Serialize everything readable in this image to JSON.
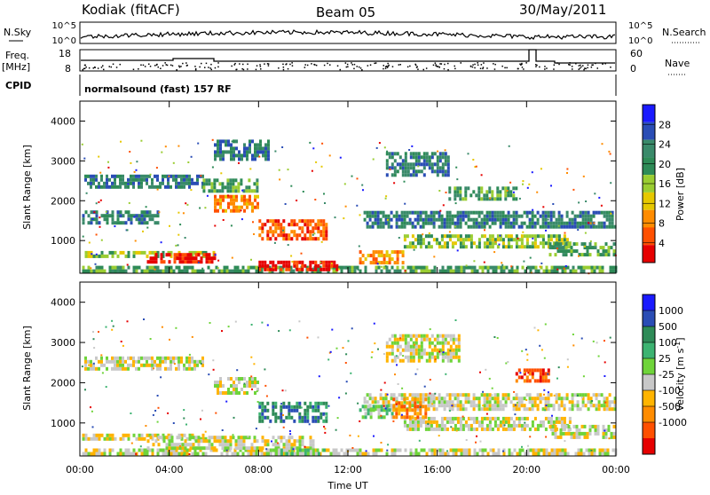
{
  "header": {
    "station": "Kodiak (fitACF)",
    "beam": "Beam 05",
    "date": "30/May/2011"
  },
  "strip": {
    "nsky_label": "N.Sky",
    "nsky_ticks": [
      "10^5",
      "10^0"
    ],
    "nsearch_label": "N.Search",
    "nsearch_ticks": [
      "10^5",
      "10^0"
    ],
    "freq_label": "Freq.",
    "freq_unit": "[MHz]",
    "freq_ticks": [
      "18",
      "8"
    ],
    "nave_label": "Nave",
    "nave_ticks": [
      "60",
      "0"
    ],
    "cpid_label": "CPID",
    "cpid_value": "normalsound (fast) 157 RF"
  },
  "colors": {
    "power": [
      "#1a1aff",
      "#2a4db5",
      "#3a8a6a",
      "#2e8b57",
      "#9acd32",
      "#e6c800",
      "#ff8c00",
      "#ff5000",
      "#e60000"
    ],
    "velocity": [
      "#1a1aff",
      "#2a4db5",
      "#2e8b57",
      "#3cb371",
      "#6fd43a",
      "#c8c8c8",
      "#ffb400",
      "#ff8c00",
      "#ff5000",
      "#e60000"
    ]
  },
  "chart_data": [
    {
      "type": "heatmap",
      "name": "power",
      "ylabel": "Slant Range [km]",
      "ylim": [
        180,
        4500
      ],
      "yticks": [
        "4000",
        "3000",
        "2000",
        "1000"
      ],
      "xlim": [
        0,
        24
      ],
      "colorbar_label": "Power [dB]",
      "colorbar_ticks": [
        "28",
        "24",
        "20",
        "16",
        "12",
        "8",
        "4"
      ],
      "bands": [
        {
          "t0": 0.1,
          "t1": 24,
          "r0": 190,
          "r1": 280,
          "level": 3
        },
        {
          "t0": 0.1,
          "t1": 6.0,
          "r0": 560,
          "r1": 700,
          "level": 4
        },
        {
          "t0": 3.0,
          "t1": 6.0,
          "r0": 420,
          "r1": 620,
          "level": 8
        },
        {
          "t0": 8.0,
          "t1": 11.5,
          "r0": 230,
          "r1": 450,
          "level": 8
        },
        {
          "t0": 8.0,
          "t1": 11.0,
          "r0": 1000,
          "r1": 1500,
          "level": 7
        },
        {
          "t0": 6.0,
          "t1": 8.0,
          "r0": 1700,
          "r1": 2100,
          "level": 6
        },
        {
          "t0": 0.1,
          "t1": 3.5,
          "r0": 1400,
          "r1": 1700,
          "level": 2
        },
        {
          "t0": 0.2,
          "t1": 5.5,
          "r0": 2300,
          "r1": 2600,
          "level": 2
        },
        {
          "t0": 5.5,
          "t1": 8.0,
          "r0": 2200,
          "r1": 2500,
          "level": 3
        },
        {
          "t0": 12.7,
          "t1": 24,
          "r0": 1300,
          "r1": 1700,
          "level": 2
        },
        {
          "t0": 14.5,
          "t1": 22.0,
          "r0": 800,
          "r1": 1100,
          "level": 4
        },
        {
          "t0": 12.5,
          "t1": 14.5,
          "r0": 400,
          "r1": 700,
          "level": 6
        },
        {
          "t0": 13.7,
          "t1": 16.5,
          "r0": 2600,
          "r1": 3200,
          "level": 2
        },
        {
          "t0": 16.5,
          "t1": 19.5,
          "r0": 2000,
          "r1": 2300,
          "level": 3
        },
        {
          "t0": 6.0,
          "t1": 8.5,
          "r0": 3000,
          "r1": 3500,
          "level": 2
        },
        {
          "t0": 21.0,
          "t1": 23.9,
          "r0": 600,
          "r1": 900,
          "level": 3
        }
      ]
    },
    {
      "type": "heatmap",
      "name": "velocity",
      "ylabel": "Slant Range [km]",
      "ylim": [
        180,
        4500
      ],
      "yticks": [
        "4000",
        "3000",
        "2000",
        "1000"
      ],
      "xlim": [
        0,
        24
      ],
      "xticks": [
        "00:00",
        "04:00",
        "08:00",
        "12:00",
        "16:00",
        "20:00",
        "00:00"
      ],
      "xlabel": "Time UT",
      "colorbar_label": "Velocity [m s",
      "colorbar_sup": "-1",
      "colorbar_ticks": [
        "1000",
        "500",
        "100",
        "25",
        "-25",
        "-100",
        "-500",
        "-1000"
      ],
      "bands": [
        {
          "t0": 0.1,
          "t1": 24,
          "r0": 190,
          "r1": 280,
          "level": 5
        },
        {
          "t0": 0.1,
          "t1": 6.0,
          "r0": 560,
          "r1": 700,
          "level": 5
        },
        {
          "t0": 3.0,
          "t1": 10.5,
          "r0": 330,
          "r1": 600,
          "level": 5
        },
        {
          "t0": 8.5,
          "t1": 11.0,
          "r0": 190,
          "r1": 320,
          "level": 4
        },
        {
          "t0": 8.0,
          "t1": 11.0,
          "r0": 1000,
          "r1": 1500,
          "level": 2
        },
        {
          "t0": 6.0,
          "t1": 8.0,
          "r0": 1700,
          "r1": 2100,
          "level": 5
        },
        {
          "t0": 0.2,
          "t1": 5.5,
          "r0": 2300,
          "r1": 2600,
          "level": 5
        },
        {
          "t0": 12.7,
          "t1": 24,
          "r0": 1300,
          "r1": 1700,
          "level": 5
        },
        {
          "t0": 14.5,
          "t1": 22.0,
          "r0": 800,
          "r1": 1100,
          "level": 5
        },
        {
          "t0": 12.5,
          "t1": 14.0,
          "r0": 1100,
          "r1": 1400,
          "level": 4
        },
        {
          "t0": 14.0,
          "t1": 15.5,
          "r0": 1100,
          "r1": 1600,
          "level": 7
        },
        {
          "t0": 13.7,
          "t1": 17.0,
          "r0": 2500,
          "r1": 3200,
          "level": 5
        },
        {
          "t0": 19.5,
          "t1": 21.0,
          "r0": 2000,
          "r1": 2300,
          "level": 8
        },
        {
          "t0": 21.0,
          "t1": 23.9,
          "r0": 600,
          "r1": 900,
          "level": 5
        }
      ]
    }
  ]
}
